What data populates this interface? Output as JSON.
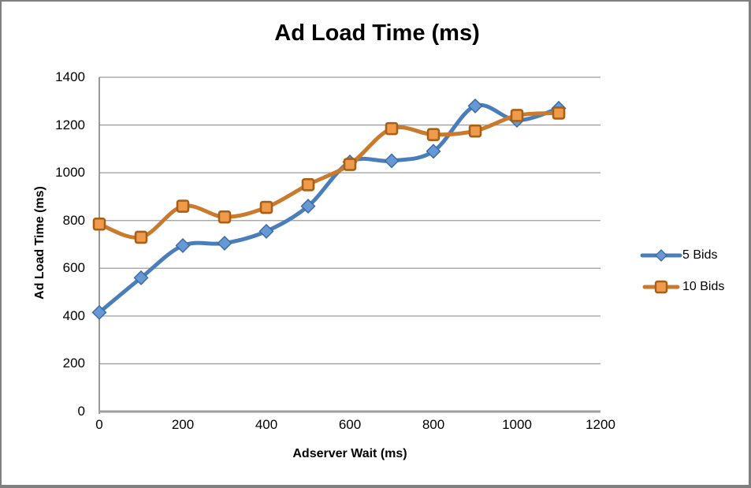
{
  "chart_data": {
    "type": "line",
    "title": "Ad Load Time (ms)",
    "xlabel": "Adserver Wait (ms)",
    "ylabel": "Ad Load Time (ms)",
    "x": [
      0,
      100,
      200,
      300,
      400,
      500,
      600,
      700,
      800,
      900,
      1000,
      1100
    ],
    "series": [
      {
        "name": "5 Bids",
        "color": "#4A7EBB",
        "marker": "diamond",
        "marker_fill": "#6598D4",
        "marker_stroke": "#3B69A0",
        "values": [
          415,
          560,
          695,
          705,
          755,
          860,
          1045,
          1050,
          1090,
          1280,
          1220,
          1270
        ]
      },
      {
        "name": "10 Bids",
        "color": "#C97A2C",
        "marker": "square",
        "marker_fill": "#F09A4B",
        "marker_stroke": "#A86017",
        "values": [
          785,
          730,
          860,
          815,
          855,
          950,
          1035,
          1185,
          1160,
          1175,
          1240,
          1250
        ]
      }
    ],
    "xlim": [
      0,
      1200
    ],
    "ylim": [
      0,
      1400
    ],
    "x_ticks": [
      0,
      200,
      400,
      600,
      800,
      1000,
      1200
    ],
    "y_ticks": [
      0,
      200,
      400,
      600,
      800,
      1000,
      1200,
      1400
    ],
    "grid": "horizontal-only",
    "smoothed_lines": true,
    "legend_position": "right",
    "colors": {
      "gridline": "#9C9C9C",
      "y_axis_line": "#808080",
      "x_axis_line": "#A0A0A0",
      "frame_border": "#7F7F7F",
      "text": "#000000"
    }
  }
}
